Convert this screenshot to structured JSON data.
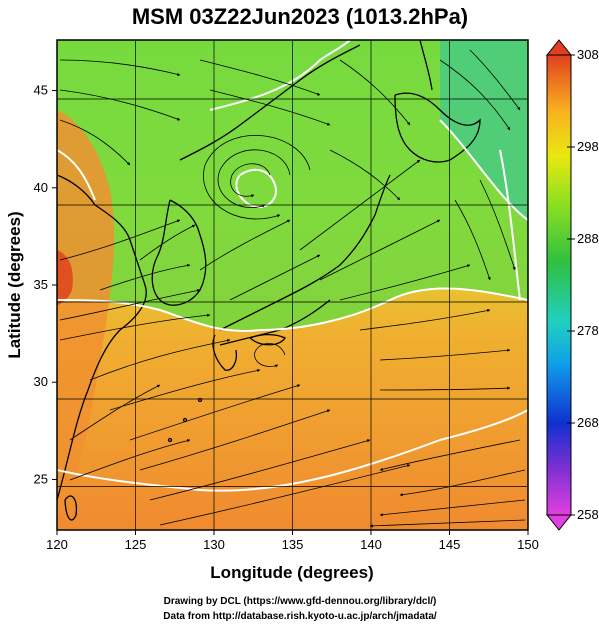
{
  "title": "MSM 03Z22Jun2023 (1013.2hPa)",
  "xlabel": "Longitude (degrees)",
  "ylabel": "Latitude  (degrees)",
  "credits": {
    "line1": "Drawing by DCL (https://www.gfd-dennou.org/library/dcl/)",
    "line2": "Data from http://database.rish.kyoto-u.ac.jp/arch/jmadata/"
  },
  "map": {
    "lon_range": [
      120,
      150
    ],
    "lat_range": [
      22.4,
      47.6
    ],
    "lon_ticks": [
      120,
      125,
      130,
      135,
      140,
      145,
      150
    ],
    "lat_ticks": [
      25,
      30,
      35,
      40,
      45
    ],
    "grid": true,
    "field": "temperature (shaded) with surface streamlines"
  },
  "colorbar": {
    "ticks": [
      258,
      268,
      278,
      288,
      298,
      308
    ],
    "min": 258,
    "max": 308,
    "colors": [
      "#e040e0",
      "#6020c0",
      "#1030d0",
      "#10a0e8",
      "#20d0c0",
      "#30c040",
      "#90e020",
      "#e8e810",
      "#f8b020",
      "#f06020"
    ]
  },
  "colors": {
    "land_outline": "#000000",
    "contour": "#ffffff",
    "warm_ocean": "#f0a030",
    "cool_land": "#60d040"
  }
}
